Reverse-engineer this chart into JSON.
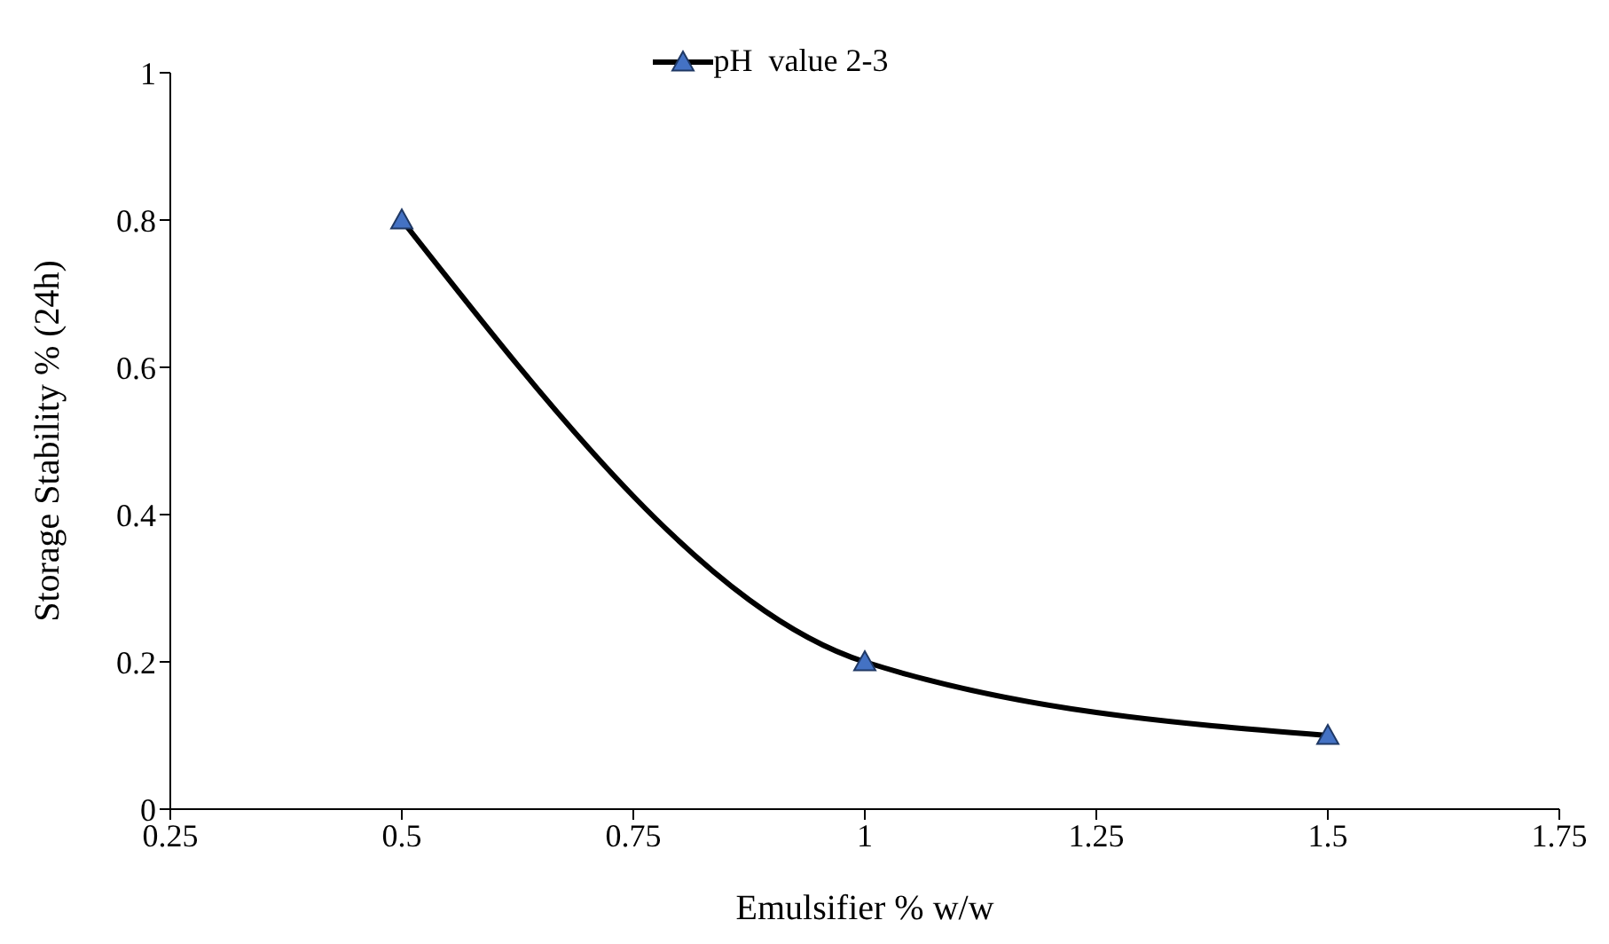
{
  "chart_data": {
    "type": "line",
    "xlabel": "Emulsifier % w/w",
    "ylabel": "Storage Stability % (24h)",
    "x": [
      0.5,
      1,
      1.5
    ],
    "series": [
      {
        "name": "pH  value 2-3",
        "color": "#000000",
        "colors": [
          "#4472c4",
          "#4472c4",
          "#4472c4"
        ],
        "values": [
          0.8,
          0.2,
          0.1
        ]
      }
    ],
    "xlim": [
      0.25,
      1.75
    ],
    "xticks": [
      0.25,
      0.5,
      0.75,
      1,
      1.25,
      1.5,
      1.75
    ],
    "ylim": [
      0,
      1
    ],
    "yticks": [
      0,
      0.2,
      0.4,
      0.6,
      0.8,
      1
    ],
    "grid": false,
    "legend": "top",
    "marker": "triangle",
    "line_style": "solid"
  }
}
